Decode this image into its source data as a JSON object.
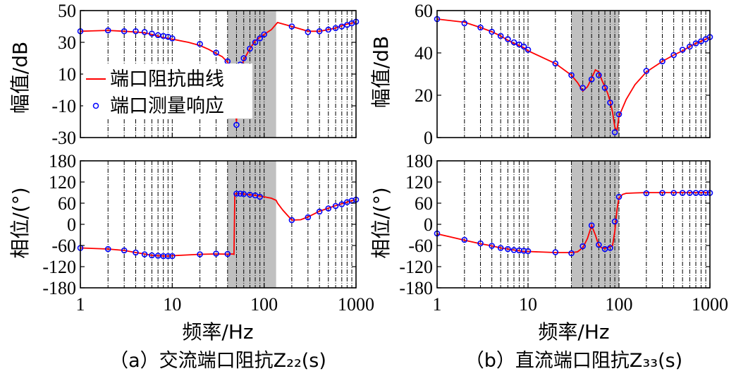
{
  "chart_data": [
    {
      "id": "a-mag",
      "type": "line",
      "x_scale": "log",
      "xlim": [
        1,
        1000
      ],
      "ylim": [
        -30,
        50
      ],
      "yticks": [
        "50",
        "30",
        "10",
        "-10",
        "-30"
      ],
      "xticks": [],
      "ylabel": "幅值/dB",
      "shade": [
        40,
        135
      ],
      "legend": {
        "position": "center-left",
        "entries": [
          {
            "label": "端口阻抗曲线",
            "marker": "line",
            "color": "#ff0000"
          },
          {
            "label": "端口测量响应",
            "marker": "circle",
            "color": "#0000ff"
          }
        ]
      },
      "series": [
        {
          "name": "端口阻抗曲线",
          "kind": "line",
          "color": "#ff0000",
          "x": [
            1,
            2,
            3,
            4,
            5,
            6,
            7,
            8,
            9,
            10,
            15,
            20,
            25,
            30,
            35,
            40,
            45,
            50,
            55,
            60,
            70,
            80,
            100,
            120,
            140,
            200,
            300,
            400,
            500,
            600,
            700,
            800,
            900,
            1000
          ],
          "y": [
            37,
            37.5,
            37,
            36.5,
            36,
            35,
            34,
            33,
            32.5,
            32,
            30,
            28,
            25.5,
            23,
            21,
            17.5,
            10,
            -20,
            12,
            19,
            26,
            31,
            35,
            38,
            42.5,
            40,
            37,
            37,
            38,
            39,
            40.5,
            41.5,
            42,
            43
          ]
        },
        {
          "name": "端口测量响应",
          "kind": "scatter",
          "color": "#0000ff",
          "x": [
            1,
            2,
            3,
            4,
            5,
            6,
            7,
            8,
            9,
            10,
            20,
            30,
            40,
            50,
            55,
            60,
            70,
            80,
            90,
            100,
            200,
            300,
            400,
            500,
            600,
            700,
            800,
            900,
            1000
          ],
          "y": [
            37,
            37.5,
            37,
            37,
            36.5,
            35.5,
            34.5,
            34,
            33.5,
            32.5,
            29,
            23.5,
            18,
            -22,
            16,
            20,
            26,
            30,
            32.5,
            35,
            40,
            36.5,
            37,
            38,
            39,
            40,
            41,
            42,
            43
          ]
        }
      ]
    },
    {
      "id": "a-phase",
      "type": "line",
      "x_scale": "log",
      "xlim": [
        1,
        1000
      ],
      "ylim": [
        -180,
        180
      ],
      "yticks": [
        "180",
        "120",
        "60",
        "0",
        "-60",
        "-120",
        "-180"
      ],
      "xticks": [
        "1",
        "10",
        "100",
        "1000"
      ],
      "ylabel": "相位/(°)",
      "xlabel": "频率/Hz",
      "caption": "（a）交流端口阻抗Z₂₂(s)",
      "shade": [
        40,
        135
      ],
      "series": [
        {
          "name": "端口阻抗曲线",
          "kind": "line",
          "color": "#ff0000",
          "x": [
            1,
            2,
            3,
            4,
            5,
            6,
            7,
            8,
            9,
            10,
            20,
            30,
            40,
            45,
            47,
            48,
            50,
            55,
            60,
            70,
            80,
            100,
            120,
            135,
            140,
            160,
            200,
            250,
            300,
            400,
            500,
            600,
            700,
            800,
            900,
            1000
          ],
          "y": [
            -67,
            -70,
            -74,
            -80,
            -84,
            -88,
            -89,
            -89.5,
            -90,
            -89,
            -85,
            -84,
            -84.5,
            -84,
            -85,
            86,
            87,
            87,
            86,
            84,
            82,
            78,
            74,
            68,
            60,
            40,
            12,
            13,
            21,
            37,
            46,
            53,
            58,
            63,
            67,
            70
          ]
        },
        {
          "name": "端口测量响应",
          "kind": "scatter",
          "color": "#0000ff",
          "x": [
            1,
            2,
            3,
            4,
            5,
            6,
            7,
            8,
            9,
            10,
            20,
            30,
            40,
            50,
            55,
            60,
            70,
            80,
            90,
            200,
            300,
            400,
            500,
            600,
            700,
            800,
            900,
            1000
          ],
          "y": [
            -67,
            -70,
            -74,
            -80,
            -85,
            -88,
            -89,
            -90,
            -90,
            -90,
            -85,
            -83,
            -84,
            87,
            87,
            86,
            84,
            82,
            78,
            12,
            20,
            36,
            45,
            52,
            57,
            63,
            67,
            70
          ]
        }
      ]
    },
    {
      "id": "b-mag",
      "type": "line",
      "x_scale": "log",
      "xlim": [
        1,
        1000
      ],
      "ylim": [
        0,
        60
      ],
      "yticks": [
        "60",
        "40",
        "20",
        "0"
      ],
      "xticks": [],
      "ylabel": "幅值/dB",
      "shade": [
        30,
        100
      ],
      "series": [
        {
          "name": "端口阻抗曲线",
          "kind": "line",
          "color": "#ff0000",
          "x": [
            1,
            2,
            3,
            4,
            5,
            6,
            7,
            8,
            9,
            10,
            20,
            30,
            35,
            40,
            45,
            50,
            55,
            60,
            65,
            70,
            75,
            80,
            85,
            90,
            95,
            100,
            120,
            150,
            200,
            300,
            400,
            500,
            600,
            700,
            800,
            900,
            1000
          ],
          "y": [
            56,
            54.5,
            52,
            50,
            48,
            46,
            44.5,
            43.5,
            42.5,
            41,
            35,
            29.5,
            26,
            22,
            24,
            28,
            32,
            31,
            27,
            24,
            21,
            17,
            12,
            5,
            3,
            10,
            18,
            25,
            31,
            36,
            39,
            41,
            43,
            44.5,
            45.5,
            46.5,
            47.5
          ]
        },
        {
          "name": "端口测量响应",
          "kind": "scatter",
          "color": "#0000ff",
          "x": [
            1,
            2,
            3,
            4,
            5,
            6,
            7,
            8,
            9,
            10,
            20,
            30,
            40,
            50,
            60,
            70,
            80,
            90,
            100,
            200,
            300,
            400,
            500,
            600,
            700,
            800,
            900,
            1000
          ],
          "y": [
            56,
            54,
            52,
            50,
            48,
            46.5,
            45,
            44,
            43,
            41.5,
            35,
            29.5,
            23.5,
            27.5,
            29.5,
            23.5,
            16.5,
            2.5,
            11,
            31.5,
            36,
            39,
            41.5,
            43,
            44.5,
            45.5,
            46.5,
            47.5
          ]
        }
      ]
    },
    {
      "id": "b-phase",
      "type": "line",
      "x_scale": "log",
      "xlim": [
        1,
        1000
      ],
      "ylim": [
        -180,
        180
      ],
      "yticks": [
        "180",
        "120",
        "60",
        "0",
        "-60",
        "-120",
        "-180"
      ],
      "xticks": [
        "1",
        "10",
        "100",
        "1000"
      ],
      "ylabel": "相位/(°)",
      "xlabel": "频率/Hz",
      "caption": "（b）直流端口阻抗Z₃₃(s)",
      "shade": [
        30,
        100
      ],
      "series": [
        {
          "name": "端口阻抗曲线",
          "kind": "line",
          "color": "#ff0000",
          "x": [
            1,
            2,
            3,
            4,
            5,
            6,
            7,
            8,
            9,
            10,
            20,
            30,
            35,
            40,
            45,
            50,
            55,
            60,
            65,
            70,
            75,
            80,
            85,
            90,
            95,
            100,
            110,
            120,
            150,
            200,
            300,
            500,
            700,
            1000
          ],
          "y": [
            -27,
            -45,
            -55,
            -61,
            -67,
            -70,
            -73,
            -75,
            -77,
            -77,
            -80,
            -80,
            -78,
            -66,
            -40,
            -3,
            -30,
            -60,
            -67,
            -68,
            -66,
            -63,
            -60,
            -20,
            40,
            75,
            85,
            88,
            89,
            90,
            90,
            90,
            90,
            90
          ]
        },
        {
          "name": "端口测量响应",
          "kind": "scatter",
          "color": "#0000ff",
          "x": [
            1,
            2,
            3,
            4,
            5,
            6,
            7,
            8,
            9,
            10,
            20,
            30,
            40,
            50,
            60,
            70,
            80,
            90,
            100,
            200,
            300,
            400,
            500,
            600,
            700,
            800,
            900,
            1000
          ],
          "y": [
            -26,
            -44,
            -54,
            -61,
            -67,
            -70,
            -73,
            -74,
            -75,
            -76,
            -79,
            -82,
            -62,
            -3,
            -58,
            -70,
            -67,
            8,
            78,
            88,
            89,
            89,
            89,
            89,
            89,
            89,
            89,
            89
          ]
        }
      ]
    }
  ]
}
